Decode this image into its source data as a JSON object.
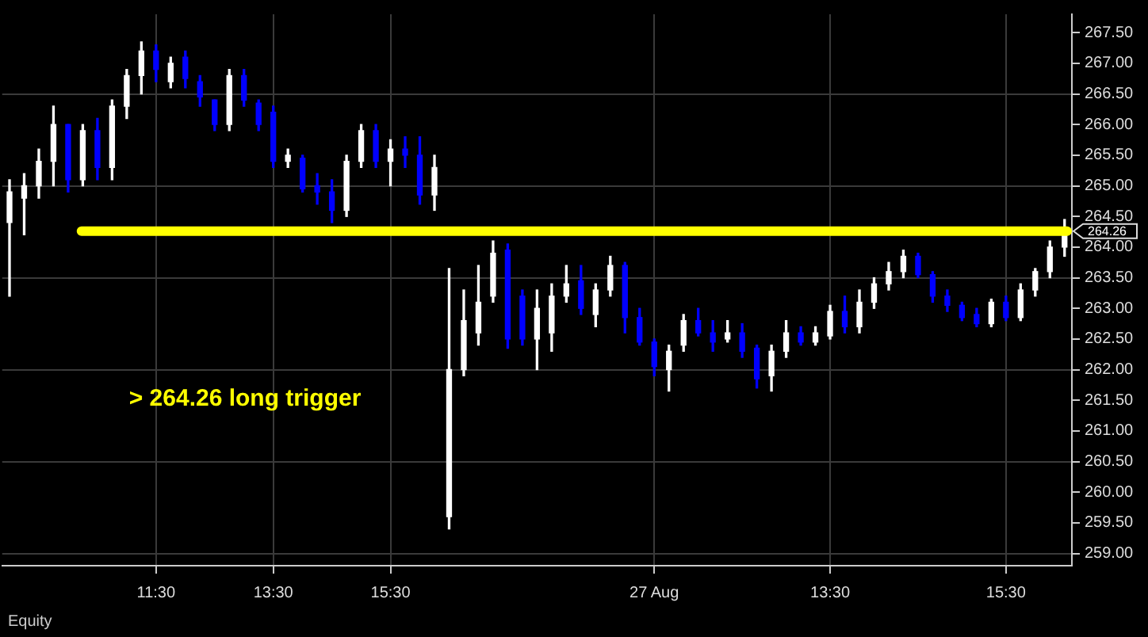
{
  "chart_data": {
    "type": "candlestick",
    "categories": [
      null,
      null,
      null,
      null,
      null,
      null,
      null,
      null,
      null,
      null,
      "11:30",
      null,
      null,
      null,
      null,
      null,
      null,
      null,
      "13:30",
      null,
      null,
      null,
      null,
      null,
      null,
      null,
      "15:30",
      null,
      null,
      null,
      null,
      null,
      null,
      null,
      null,
      null,
      null,
      null,
      null,
      null,
      null,
      null,
      null,
      null,
      "27 Aug",
      null,
      null,
      null,
      null,
      null,
      null,
      null,
      null,
      null,
      null,
      null,
      "13:30",
      null,
      null,
      null,
      null,
      null,
      null,
      null,
      null,
      null,
      null,
      null,
      "15:30",
      null,
      null,
      null,
      null
    ],
    "ohlc": [
      [
        264.4,
        265.1,
        263.2,
        264.9
      ],
      [
        264.8,
        265.2,
        264.2,
        265.0
      ],
      [
        265.0,
        265.6,
        264.8,
        265.4
      ],
      [
        265.4,
        266.3,
        265.0,
        266.0
      ],
      [
        266.0,
        266.0,
        264.9,
        265.1
      ],
      [
        265.1,
        266.0,
        265.0,
        265.9
      ],
      [
        265.9,
        266.1,
        265.1,
        265.3
      ],
      [
        265.3,
        266.4,
        265.1,
        266.3
      ],
      [
        266.3,
        266.9,
        266.1,
        266.8
      ],
      [
        266.8,
        267.35,
        266.5,
        267.2
      ],
      [
        267.2,
        267.3,
        266.7,
        266.9
      ],
      [
        266.7,
        267.1,
        266.6,
        267.0
      ],
      [
        267.1,
        267.2,
        266.6,
        266.75
      ],
      [
        266.7,
        266.8,
        266.3,
        266.45
      ],
      [
        266.4,
        266.4,
        265.9,
        266.0
      ],
      [
        266.0,
        266.9,
        265.9,
        266.8
      ],
      [
        266.8,
        266.9,
        266.3,
        266.4
      ],
      [
        266.35,
        266.4,
        265.9,
        266.0
      ],
      [
        266.2,
        266.3,
        265.3,
        265.4
      ],
      [
        265.4,
        265.6,
        265.3,
        265.5
      ],
      [
        265.45,
        265.5,
        264.9,
        264.95
      ],
      [
        265.0,
        265.2,
        264.7,
        264.9
      ],
      [
        264.9,
        265.1,
        264.4,
        264.6
      ],
      [
        264.6,
        265.5,
        264.5,
        265.4
      ],
      [
        265.4,
        266.0,
        265.3,
        265.9
      ],
      [
        265.9,
        266.0,
        265.3,
        265.4
      ],
      [
        265.4,
        265.75,
        265.0,
        265.6
      ],
      [
        265.6,
        265.8,
        265.3,
        265.5
      ],
      [
        265.5,
        265.8,
        264.7,
        264.85
      ],
      [
        264.85,
        265.5,
        264.6,
        265.3
      ],
      [
        259.6,
        263.65,
        259.4,
        262.0
      ],
      [
        262.0,
        263.3,
        261.9,
        262.8
      ],
      [
        262.6,
        263.7,
        262.4,
        263.1
      ],
      [
        263.2,
        264.1,
        263.1,
        263.9
      ],
      [
        263.95,
        264.05,
        262.35,
        262.5
      ],
      [
        263.2,
        263.3,
        262.4,
        262.5
      ],
      [
        262.5,
        263.3,
        262.0,
        263.0
      ],
      [
        262.6,
        263.4,
        262.3,
        263.2
      ],
      [
        263.2,
        263.7,
        263.1,
        263.4
      ],
      [
        263.45,
        263.7,
        262.9,
        263.0
      ],
      [
        262.9,
        263.4,
        262.7,
        263.3
      ],
      [
        263.3,
        263.85,
        263.2,
        263.7
      ],
      [
        263.7,
        263.75,
        262.6,
        262.85
      ],
      [
        262.85,
        263.0,
        262.4,
        262.45
      ],
      [
        262.45,
        262.5,
        261.9,
        262.05
      ],
      [
        262.0,
        262.4,
        261.65,
        262.3
      ],
      [
        262.4,
        262.9,
        262.3,
        262.8
      ],
      [
        262.8,
        263.0,
        262.55,
        262.6
      ],
      [
        262.6,
        262.8,
        262.3,
        262.45
      ],
      [
        262.5,
        262.8,
        262.45,
        262.6
      ],
      [
        262.6,
        262.75,
        262.2,
        262.3
      ],
      [
        262.35,
        262.4,
        261.7,
        261.85
      ],
      [
        261.9,
        262.4,
        261.65,
        262.3
      ],
      [
        262.3,
        262.8,
        262.2,
        262.6
      ],
      [
        262.6,
        262.7,
        262.4,
        262.45
      ],
      [
        262.45,
        262.7,
        262.4,
        262.6
      ],
      [
        262.55,
        263.05,
        262.5,
        262.95
      ],
      [
        262.95,
        263.2,
        262.6,
        262.7
      ],
      [
        262.7,
        263.3,
        262.6,
        263.1
      ],
      [
        263.1,
        263.5,
        263.0,
        263.4
      ],
      [
        263.4,
        263.75,
        263.3,
        263.6
      ],
      [
        263.6,
        263.95,
        263.5,
        263.85
      ],
      [
        263.85,
        263.9,
        263.5,
        263.55
      ],
      [
        263.55,
        263.6,
        263.1,
        263.2
      ],
      [
        263.2,
        263.3,
        262.95,
        263.05
      ],
      [
        263.05,
        263.1,
        262.8,
        262.85
      ],
      [
        262.9,
        263.0,
        262.7,
        262.75
      ],
      [
        262.75,
        263.15,
        262.7,
        263.1
      ],
      [
        263.1,
        263.2,
        262.8,
        262.85
      ],
      [
        262.85,
        263.4,
        262.8,
        263.3
      ],
      [
        263.3,
        263.65,
        263.2,
        263.6
      ],
      [
        263.6,
        264.1,
        263.5,
        264.0
      ],
      [
        264.0,
        264.45,
        263.85,
        264.25
      ]
    ],
    "colors": [
      "#ffffff",
      "#ffffff",
      "#ffffff",
      "#ffffff",
      "#0000ff",
      "#ffffff",
      "#0000ff",
      "#ffffff",
      "#ffffff",
      "#ffffff",
      "#0000ff",
      "#ffffff",
      "#0000ff",
      "#0000ff",
      "#0000ff",
      "#ffffff",
      "#0000ff",
      "#0000ff",
      "#0000ff",
      "#ffffff",
      "#0000ff",
      "#0000ff",
      "#0000ff",
      "#ffffff",
      "#ffffff",
      "#0000ff",
      "#ffffff",
      "#0000ff",
      "#0000ff",
      "#ffffff",
      "#ffffff",
      "#ffffff",
      "#ffffff",
      "#ffffff",
      "#0000ff",
      "#0000ff",
      "#ffffff",
      "#ffffff",
      "#ffffff",
      "#0000ff",
      "#ffffff",
      "#ffffff",
      "#0000ff",
      "#0000ff",
      "#0000ff",
      "#ffffff",
      "#ffffff",
      "#0000ff",
      "#0000ff",
      "#ffffff",
      "#0000ff",
      "#0000ff",
      "#ffffff",
      "#ffffff",
      "#0000ff",
      "#ffffff",
      "#ffffff",
      "#0000ff",
      "#ffffff",
      "#ffffff",
      "#ffffff",
      "#ffffff",
      "#0000ff",
      "#0000ff",
      "#0000ff",
      "#0000ff",
      "#0000ff",
      "#ffffff",
      "#0000ff",
      "#ffffff",
      "#ffffff",
      "#ffffff",
      "#ffffff"
    ],
    "ylim": [
      258.8,
      267.8
    ],
    "yticks": [
      {
        "value": 259,
        "label": "259.00"
      },
      {
        "value": 259.5,
        "label": "259.50"
      },
      {
        "value": 260,
        "label": "260.00"
      },
      {
        "value": 260.5,
        "label": "260.50"
      },
      {
        "value": 261,
        "label": "261.00"
      },
      {
        "value": 261.5,
        "label": "261.50"
      },
      {
        "value": 262,
        "label": "262.00"
      },
      {
        "value": 262.5,
        "label": "262.50"
      },
      {
        "value": 263,
        "label": "263.00"
      },
      {
        "value": 263.5,
        "label": "263.50"
      },
      {
        "value": 264,
        "label": "264.00"
      },
      {
        "value": 264.5,
        "label": "264.50"
      },
      {
        "value": 265,
        "label": "265.00"
      },
      {
        "value": 265.5,
        "label": "265.50"
      },
      {
        "value": 266,
        "label": "266.00"
      },
      {
        "value": 266.5,
        "label": "266.50"
      },
      {
        "value": 267,
        "label": "267.00"
      },
      {
        "value": 267.5,
        "label": "267.50"
      }
    ],
    "ref_lines": [
      {
        "axis": "y",
        "value": 264.26,
        "label": "264.26",
        "color": "#ffff00"
      }
    ],
    "annotations": [
      "> 264.26 long trigger",
      "Equity"
    ],
    "grid": true,
    "legend": false
  }
}
